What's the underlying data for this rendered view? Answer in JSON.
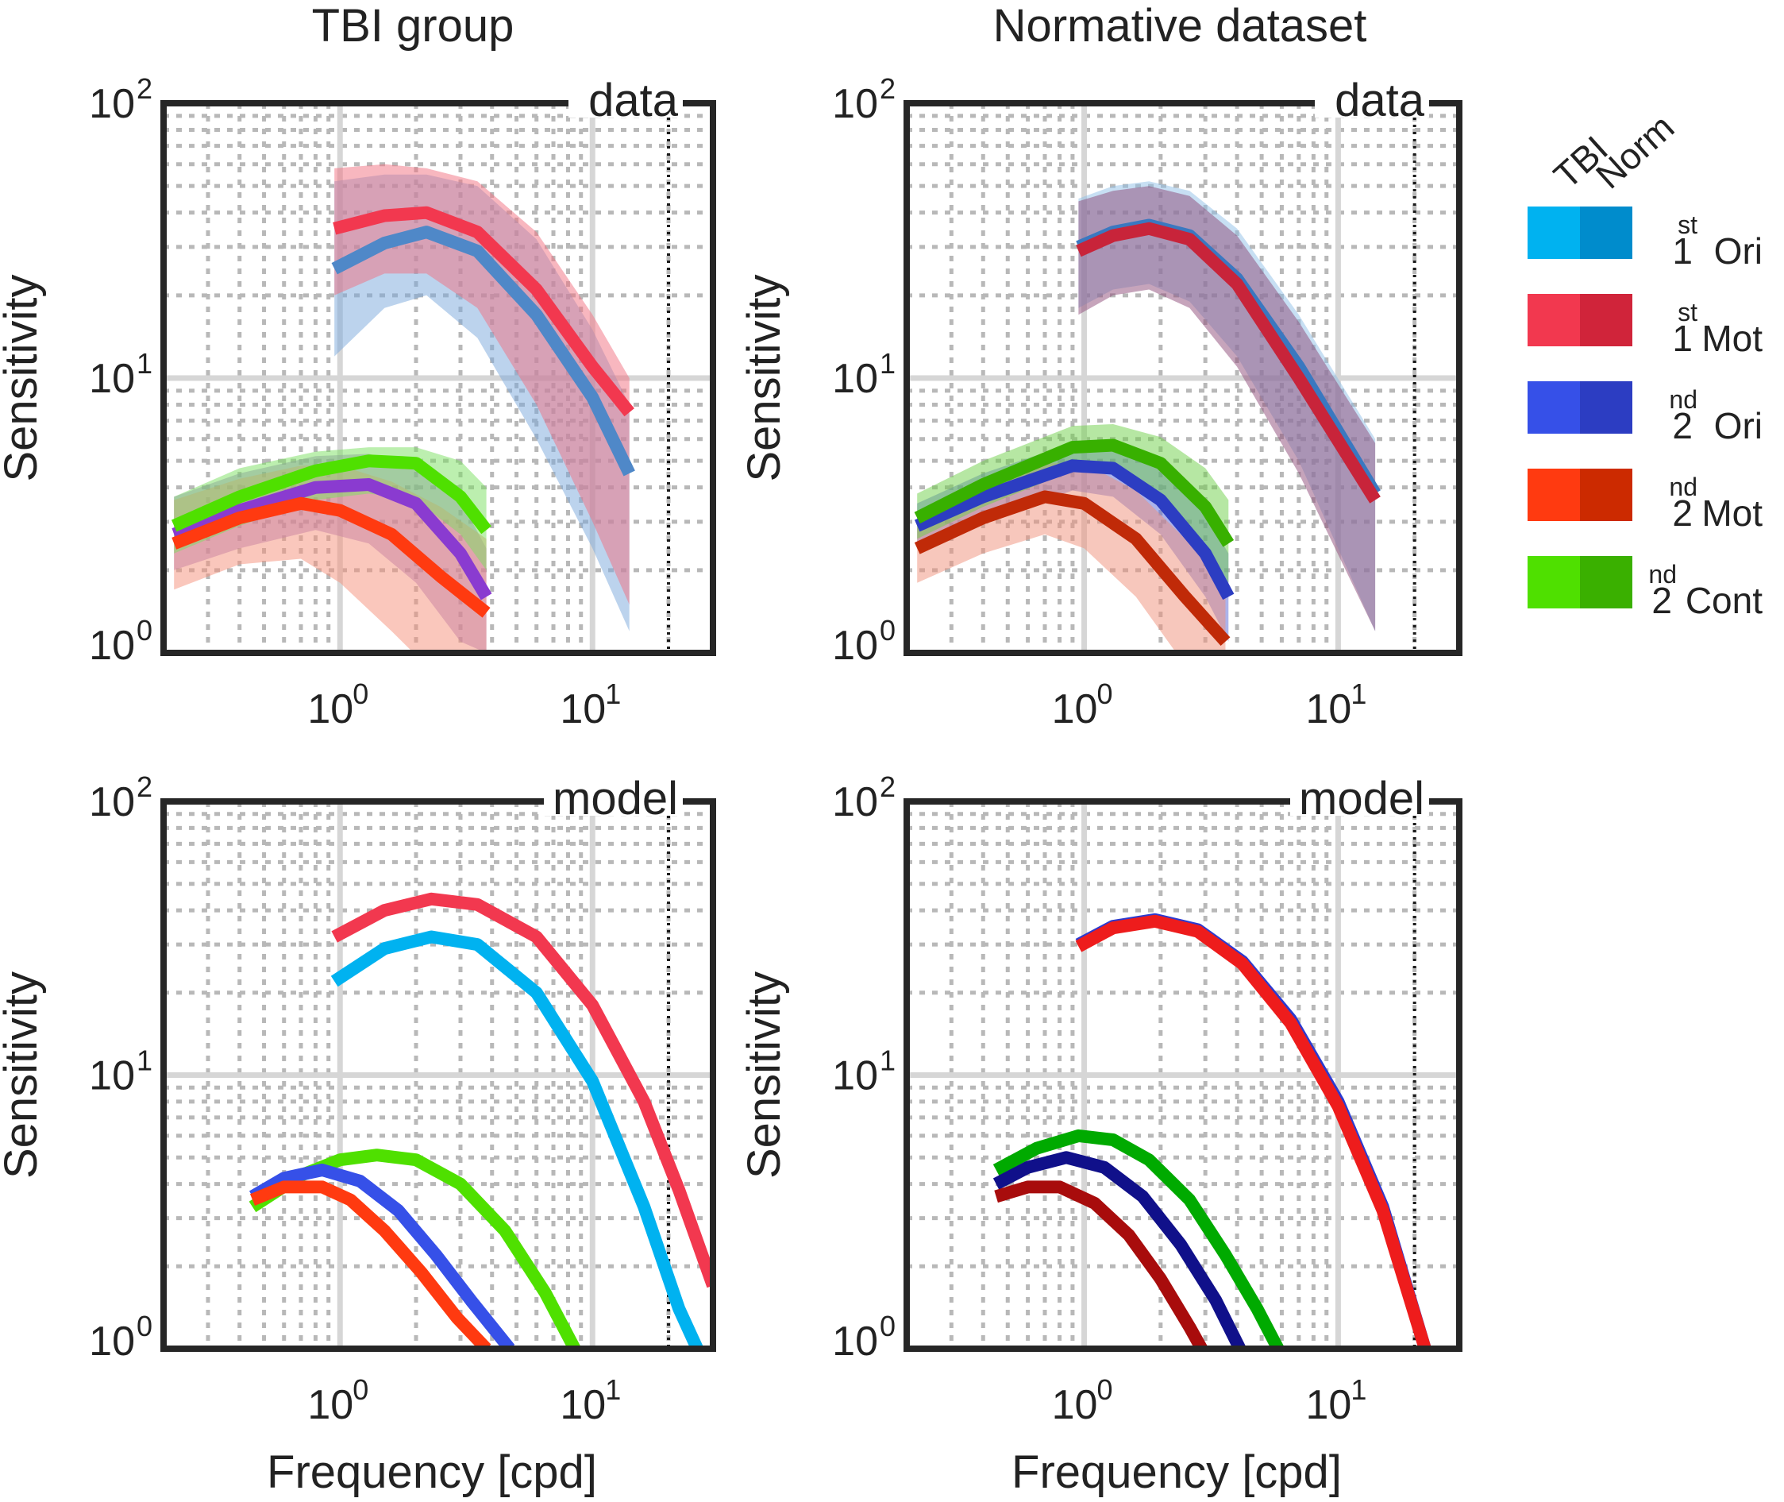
{
  "column_titles": [
    "TBI group",
    "Normative dataset"
  ],
  "legend": {
    "header_tbi": "TBI",
    "header_norm": "Norm",
    "entries": [
      {
        "base": "1",
        "sup": "st",
        "label": "Ori",
        "color_tbi": "#00b2f0",
        "color_norm": "#008ccc"
      },
      {
        "base": "1",
        "sup": "st",
        "label": "Mot",
        "color_tbi": "#f2384f",
        "color_norm": "#d0243a"
      },
      {
        "base": "2",
        "sup": "nd",
        "label": "Ori",
        "color_tbi": "#3650e8",
        "color_norm": "#2c3dc2"
      },
      {
        "base": "2",
        "sup": "nd",
        "label": "Mot",
        "color_tbi": "#ff3a10",
        "color_norm": "#cc2a00"
      },
      {
        "base": "2",
        "sup": "nd",
        "label": "Cont",
        "color_tbi": "#4fe000",
        "color_norm": "#3ab000"
      }
    ]
  },
  "chart_data": [
    {
      "id": "tbi-data",
      "type": "line",
      "subtype": "band",
      "panel_label": "data",
      "xscale": "log",
      "yscale": "log",
      "xlim": [
        0.2,
        30
      ],
      "ylim": [
        1,
        100
      ],
      "xlabel": "",
      "ylabel": "Sensitivity",
      "xticks": [
        {
          "base": "10",
          "exp": "0"
        },
        {
          "base": "10",
          "exp": "1"
        }
      ],
      "yticks": [
        {
          "base": "10",
          "exp": "0"
        },
        {
          "base": "10",
          "exp": "1"
        },
        {
          "base": "10",
          "exp": "2"
        }
      ],
      "reference_line_x": 20,
      "grid": true,
      "series": [
        {
          "name": "1st Ori",
          "color": "#4f88c8",
          "band_color": "#7aa8dc",
          "x": [
            0.95,
            1.5,
            2.2,
            3.5,
            6,
            10,
            14
          ],
          "y": [
            25,
            31,
            34,
            29,
            17,
            8.5,
            4.5
          ],
          "lower": [
            12,
            18,
            20,
            14,
            6,
            2.4,
            1.2
          ],
          "upper": [
            52,
            55,
            55,
            50,
            32,
            15,
            8
          ]
        },
        {
          "name": "1st Mot",
          "color": "#f2384f",
          "band_color": "#f26f7f",
          "x": [
            0.95,
            1.5,
            2.2,
            3.5,
            6,
            10,
            14
          ],
          "y": [
            35,
            39,
            40,
            34,
            21,
            11,
            7.5
          ],
          "lower": [
            20,
            24,
            24,
            18,
            8,
            3,
            1.5
          ],
          "upper": [
            58,
            60,
            58,
            52,
            34,
            17,
            10
          ]
        },
        {
          "name": "2nd Ori",
          "color": "#8a3bd0",
          "band_color": "#9a72c8",
          "x": [
            0.22,
            0.4,
            0.8,
            1.3,
            2.0,
            3.0,
            3.8
          ],
          "y": [
            2.7,
            3.3,
            4.0,
            4.1,
            3.5,
            2.3,
            1.6
          ],
          "lower": [
            2.0,
            2.4,
            2.8,
            2.5,
            1.8,
            1.1,
            1.0
          ],
          "upper": [
            3.7,
            4.5,
            5.2,
            5.3,
            4.8,
            3.6,
            2.4
          ]
        },
        {
          "name": "2nd Mot",
          "color": "#ff3a10",
          "band_color": "#f5907a",
          "x": [
            0.22,
            0.4,
            0.7,
            1.0,
            1.6,
            2.5,
            3.8
          ],
          "y": [
            2.5,
            3.1,
            3.5,
            3.3,
            2.7,
            1.9,
            1.4
          ],
          "lower": [
            1.7,
            2.1,
            2.2,
            1.8,
            1.2,
            0.8,
            0.6
          ],
          "upper": [
            3.6,
            4.3,
            4.8,
            4.8,
            4.2,
            3.4,
            2.6
          ]
        },
        {
          "name": "2nd Cont",
          "color": "#4fe000",
          "band_color": "#79e060",
          "x": [
            0.22,
            0.4,
            0.8,
            1.3,
            2.0,
            3.0,
            3.8
          ],
          "y": [
            2.9,
            3.7,
            4.6,
            5.0,
            4.9,
            3.7,
            2.8
          ],
          "lower": [
            2.3,
            2.9,
            3.6,
            3.8,
            3.6,
            2.7,
            2.0
          ],
          "upper": [
            3.7,
            4.7,
            5.4,
            5.6,
            5.6,
            5.0,
            4.0
          ]
        }
      ]
    },
    {
      "id": "norm-data",
      "type": "line",
      "subtype": "band",
      "panel_label": "data",
      "xscale": "log",
      "yscale": "log",
      "xlim": [
        0.2,
        30
      ],
      "ylim": [
        1,
        100
      ],
      "xlabel": "",
      "ylabel": "Sensitivity",
      "xticks": [
        {
          "base": "10",
          "exp": "0"
        },
        {
          "base": "10",
          "exp": "1"
        }
      ],
      "yticks": [
        {
          "base": "10",
          "exp": "0"
        },
        {
          "base": "10",
          "exp": "1"
        },
        {
          "base": "10",
          "exp": "2"
        }
      ],
      "reference_line_x": 20,
      "grid": true,
      "series": [
        {
          "name": "1st Ori",
          "color": "#3a78c0",
          "band_color": "#8fc0e8",
          "x": [
            0.95,
            1.3,
            1.8,
            2.6,
            4,
            7,
            14
          ],
          "y": [
            30,
            34,
            36,
            33,
            23,
            11,
            3.8
          ],
          "lower": [
            18,
            21,
            22,
            19,
            12,
            5,
            1.2
          ],
          "upper": [
            45,
            50,
            52,
            48,
            35,
            17,
            6
          ]
        },
        {
          "name": "1st Mot",
          "color": "#c8243a",
          "band_color": "#8e4a78",
          "x": [
            0.95,
            1.3,
            1.8,
            2.6,
            4,
            7,
            14
          ],
          "y": [
            29,
            33,
            35,
            32,
            22,
            10,
            3.6
          ],
          "lower": [
            17,
            20,
            21,
            18,
            11,
            4.5,
            1.2
          ],
          "upper": [
            44,
            48,
            50,
            46,
            33,
            16,
            5.8
          ]
        },
        {
          "name": "2nd Ori",
          "color": "#2c3dc2",
          "band_color": "#5a68d8",
          "x": [
            0.22,
            0.4,
            0.9,
            1.3,
            2.0,
            3.0,
            3.7
          ],
          "y": [
            2.9,
            3.7,
            4.8,
            4.7,
            3.6,
            2.3,
            1.6
          ],
          "lower": [
            2.4,
            3.0,
            3.9,
            3.7,
            2.7,
            1.6,
            1.1
          ],
          "upper": [
            3.5,
            4.5,
            5.8,
            5.9,
            4.8,
            3.2,
            2.3
          ]
        },
        {
          "name": "2nd Mot",
          "color": "#c02a08",
          "band_color": "#f0907a",
          "x": [
            0.22,
            0.4,
            0.7,
            1.0,
            1.6,
            2.5,
            3.6
          ],
          "y": [
            2.4,
            3.1,
            3.7,
            3.5,
            2.6,
            1.6,
            1.1
          ],
          "lower": [
            1.8,
            2.3,
            2.7,
            2.4,
            1.6,
            0.9,
            0.6
          ],
          "upper": [
            3.2,
            4.1,
            4.9,
            4.9,
            3.9,
            2.6,
            1.8
          ]
        },
        {
          "name": "2nd Cont",
          "color": "#38b000",
          "band_color": "#6ed048",
          "x": [
            0.22,
            0.4,
            0.9,
            1.3,
            2.0,
            3.0,
            3.7
          ],
          "y": [
            3.1,
            4.1,
            5.6,
            5.7,
            4.9,
            3.4,
            2.5
          ],
          "lower": [
            2.6,
            3.4,
            4.6,
            4.6,
            3.8,
            2.5,
            1.8
          ],
          "upper": [
            3.8,
            5.0,
            6.7,
            6.8,
            6.1,
            4.7,
            3.6
          ]
        }
      ]
    },
    {
      "id": "tbi-model",
      "type": "line",
      "panel_label": "model",
      "xscale": "log",
      "yscale": "log",
      "xlim": [
        0.2,
        30
      ],
      "ylim": [
        1,
        100
      ],
      "xlabel": "Frequency [cpd]",
      "ylabel": "Sensitivity",
      "xticks": [
        {
          "base": "10",
          "exp": "0"
        },
        {
          "base": "10",
          "exp": "1"
        }
      ],
      "yticks": [
        {
          "base": "10",
          "exp": "0"
        },
        {
          "base": "10",
          "exp": "1"
        },
        {
          "base": "10",
          "exp": "2"
        }
      ],
      "reference_line_x": 20,
      "grid": true,
      "series": [
        {
          "name": "1st Mot",
          "color": "#f2384f",
          "x": [
            0.95,
            1.5,
            2.3,
            3.5,
            6,
            10,
            16,
            22,
            30
          ],
          "y": [
            32,
            40,
            44,
            42,
            32,
            18,
            8,
            3.8,
            1.7
          ]
        },
        {
          "name": "1st Ori",
          "color": "#00b2f0",
          "x": [
            0.95,
            1.5,
            2.3,
            3.5,
            6,
            10,
            16,
            22,
            26
          ],
          "y": [
            22,
            29,
            32,
            30,
            20,
            9.5,
            3.3,
            1.4,
            1.0
          ]
        },
        {
          "name": "2nd Cont",
          "color": "#4fe000",
          "x": [
            0.45,
            0.7,
            1.0,
            1.4,
            2.0,
            3.0,
            4.5,
            6.5,
            8.5
          ],
          "y": [
            3.3,
            4.3,
            4.9,
            5.1,
            4.9,
            4.0,
            2.7,
            1.6,
            1.0
          ]
        },
        {
          "name": "2nd Ori",
          "color": "#3650e8",
          "x": [
            0.45,
            0.6,
            0.85,
            1.2,
            1.7,
            2.4,
            3.3,
            4.7
          ],
          "y": [
            3.6,
            4.2,
            4.5,
            4.1,
            3.2,
            2.2,
            1.5,
            1.0
          ]
        },
        {
          "name": "2nd Mot",
          "color": "#ff3a10",
          "x": [
            0.45,
            0.6,
            0.85,
            1.1,
            1.5,
            2.1,
            2.9,
            3.8
          ],
          "y": [
            3.5,
            3.9,
            3.9,
            3.5,
            2.7,
            1.9,
            1.3,
            1.0
          ]
        }
      ]
    },
    {
      "id": "norm-model",
      "type": "line",
      "panel_label": "model",
      "xscale": "log",
      "yscale": "log",
      "xlim": [
        0.2,
        30
      ],
      "ylim": [
        1,
        100
      ],
      "xlabel": "Frequency [cpd]",
      "ylabel": "Sensitivity",
      "xticks": [
        {
          "base": "10",
          "exp": "0"
        },
        {
          "base": "10",
          "exp": "1"
        }
      ],
      "yticks": [
        {
          "base": "10",
          "exp": "0"
        },
        {
          "base": "10",
          "exp": "1"
        },
        {
          "base": "10",
          "exp": "2"
        }
      ],
      "reference_line_x": 20,
      "grid": true,
      "series": [
        {
          "name": "1st Ori",
          "color": "#2a3ad0",
          "x": [
            0.95,
            1.3,
            1.9,
            2.8,
            4.2,
            6.5,
            10,
            15,
            22
          ],
          "y": [
            30,
            35,
            37,
            34,
            26,
            16,
            8,
            3.3,
            1.0
          ]
        },
        {
          "name": "1st Mot",
          "color": "#ee1c1c",
          "x": [
            0.95,
            1.3,
            1.9,
            2.8,
            4.2,
            6.5,
            10,
            15,
            22
          ],
          "y": [
            29.5,
            34.5,
            36.5,
            33.5,
            25.5,
            15.5,
            7.7,
            3.2,
            1.0
          ]
        },
        {
          "name": "2nd Cont",
          "color": "#00aa00",
          "x": [
            0.45,
            0.65,
            0.95,
            1.3,
            1.8,
            2.6,
            3.6,
            4.8,
            5.8
          ],
          "y": [
            4.5,
            5.4,
            6.0,
            5.8,
            4.9,
            3.5,
            2.2,
            1.4,
            1.0
          ]
        },
        {
          "name": "2nd Ori",
          "color": "#10108a",
          "x": [
            0.45,
            0.6,
            0.85,
            1.2,
            1.7,
            2.4,
            3.3,
            4.1
          ],
          "y": [
            4.0,
            4.6,
            5.0,
            4.6,
            3.6,
            2.4,
            1.5,
            1.0
          ]
        },
        {
          "name": "2nd Mot",
          "color": "#a80c0c",
          "x": [
            0.45,
            0.6,
            0.8,
            1.1,
            1.5,
            2.0,
            2.6,
            2.9
          ],
          "y": [
            3.6,
            3.9,
            3.9,
            3.4,
            2.6,
            1.8,
            1.2,
            1.0
          ]
        }
      ]
    }
  ]
}
